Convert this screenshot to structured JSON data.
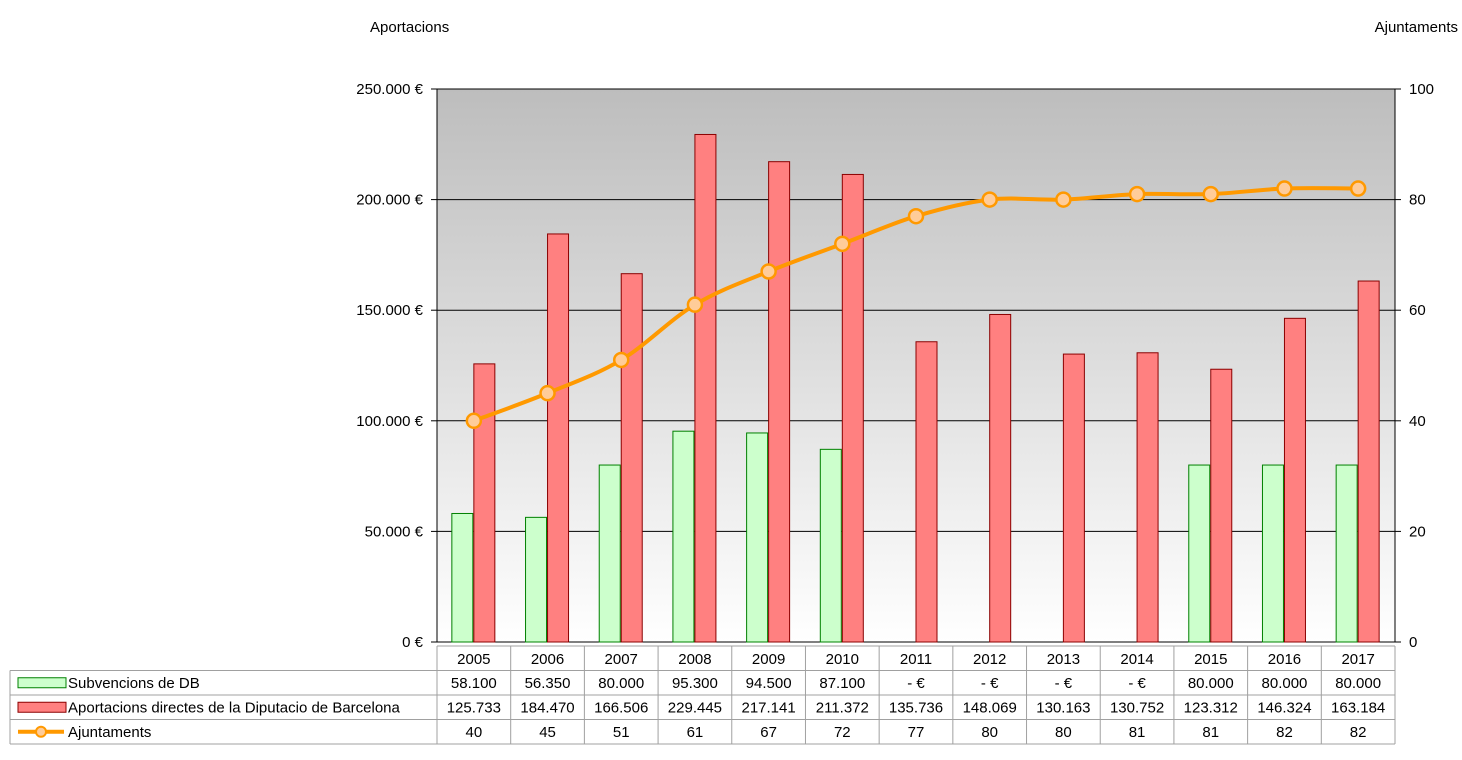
{
  "chart_data": {
    "type": "bar",
    "title": "",
    "y_left_label": "Aportacions",
    "y_right_label": "Ajuntaments",
    "ylim_left": [
      0,
      250000
    ],
    "ylim_right": [
      0,
      100
    ],
    "y_left_ticks": [
      "0 €",
      "50.000 €",
      "100.000 €",
      "150.000 €",
      "200.000 €",
      "250.000 €"
    ],
    "y_right_ticks": [
      "0",
      "20",
      "40",
      "60",
      "80",
      "100"
    ],
    "grid": true,
    "legend_placement": "data-table-left",
    "categories": [
      "2005",
      "2006",
      "2007",
      "2008",
      "2009",
      "2010",
      "2011",
      "2012",
      "2013",
      "2014",
      "2015",
      "2016",
      "2017"
    ],
    "series": [
      {
        "name": "Subvencions de DB",
        "kind": "bar",
        "axis": "left",
        "color": "#ccffcc",
        "stroke": "#008000",
        "values": [
          58100,
          56350,
          80000,
          95300,
          94500,
          87100,
          0,
          0,
          0,
          0,
          80000,
          80000,
          80000
        ],
        "labels": [
          "58.100",
          "56.350",
          "80.000",
          "95.300",
          "94.500",
          "87.100",
          "- €",
          "- €",
          "- €",
          "- €",
          "80.000",
          "80.000",
          "80.000"
        ]
      },
      {
        "name": "Aportacions directes de la Diputacio de Barcelona",
        "kind": "bar",
        "axis": "left",
        "color": "#ff8080",
        "stroke": "#8b0000",
        "values": [
          125733,
          184470,
          166506,
          229445,
          217141,
          211372,
          135736,
          148069,
          130163,
          130752,
          123312,
          146324,
          163184
        ],
        "labels": [
          "125.733",
          "184.470",
          "166.506",
          "229.445",
          "217.141",
          "211.372",
          "135.736",
          "148.069",
          "130.163",
          "130.752",
          "123.312",
          "146.324",
          "163.184"
        ]
      },
      {
        "name": "Ajuntaments",
        "kind": "line",
        "axis": "right",
        "color": "#ff9900",
        "marker_fill": "#ffcc99",
        "values": [
          40,
          45,
          51,
          61,
          67,
          72,
          77,
          80,
          80,
          81,
          81,
          82,
          82
        ],
        "labels": [
          "40",
          "45",
          "51",
          "61",
          "67",
          "72",
          "77",
          "80",
          "80",
          "81",
          "81",
          "82",
          "82"
        ]
      }
    ]
  }
}
